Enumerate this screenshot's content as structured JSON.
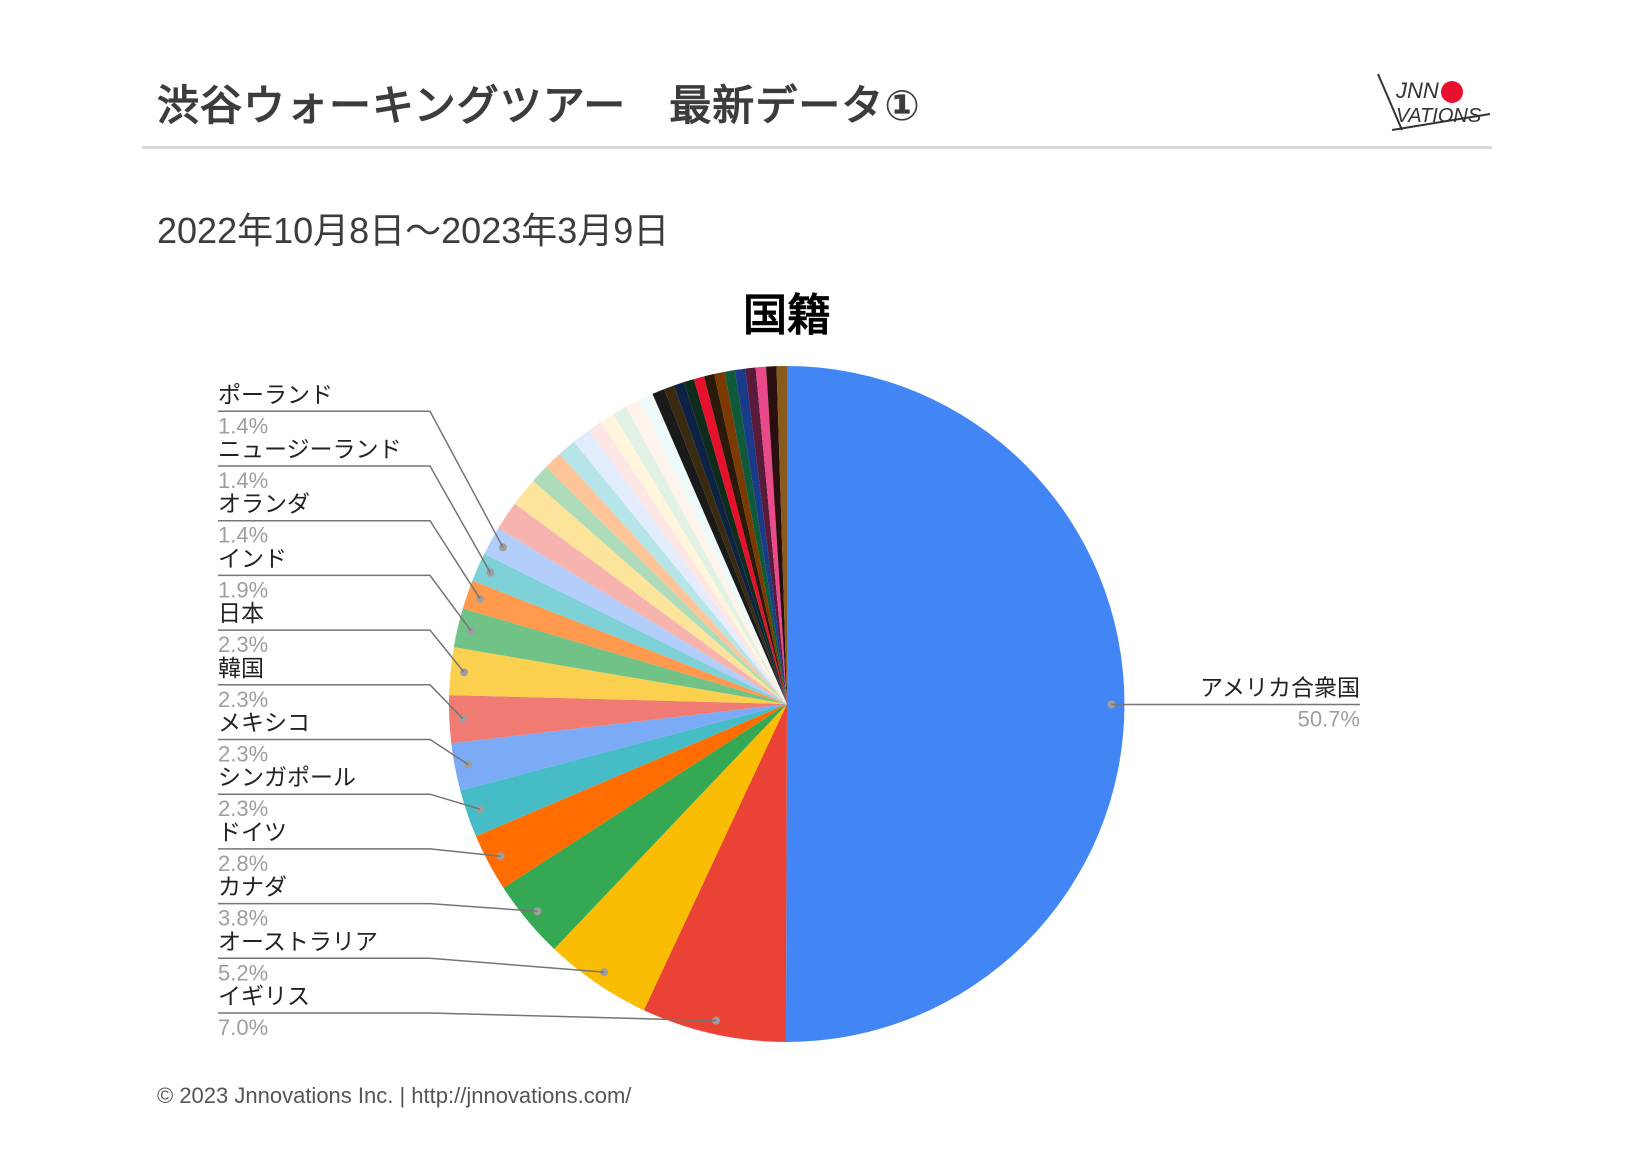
{
  "header": {
    "title": "渋谷ウォーキングツアー　最新データ①",
    "logo_text_top": "JNN",
    "logo_text_bottom": "VATIONS",
    "logo_accent": "#e8112d"
  },
  "subtitle": "2022年10月8日～2023年3月9日",
  "footer": "© 2023 Jnnovations  Inc.  |  http://jnnovations.com/",
  "chart_data": {
    "type": "pie",
    "title": "国籍",
    "start_angle_deg": 0,
    "direction": "clockwise",
    "labeled_slices": [
      {
        "label": "アメリカ合衆国",
        "value": 50.7,
        "color": "#4285f4",
        "pct_label": "50.7%"
      },
      {
        "label": "イギリス",
        "value": 7.0,
        "color": "#ea4335",
        "pct_label": "7.0%"
      },
      {
        "label": "オーストラリア",
        "value": 5.2,
        "color": "#fbbc04",
        "pct_label": "5.2%"
      },
      {
        "label": "カナダ",
        "value": 3.8,
        "color": "#34a853",
        "pct_label": "3.8%"
      },
      {
        "label": "ドイツ",
        "value": 2.8,
        "color": "#ff6d01",
        "pct_label": "2.8%"
      },
      {
        "label": "シンガポール",
        "value": 2.3,
        "color": "#46bdc6",
        "pct_label": "2.3%"
      },
      {
        "label": "メキシコ",
        "value": 2.3,
        "color": "#7baaf7",
        "pct_label": "2.3%"
      },
      {
        "label": "韓国",
        "value": 2.3,
        "color": "#f07b72",
        "pct_label": "2.3%"
      },
      {
        "label": "日本",
        "value": 2.3,
        "color": "#fcd04f",
        "pct_label": "2.3%"
      },
      {
        "label": "インド",
        "value": 1.9,
        "color": "#71c287",
        "pct_label": "1.9%"
      },
      {
        "label": "オランダ",
        "value": 1.4,
        "color": "#ff994d",
        "pct_label": "1.4%"
      },
      {
        "label": "ニュージーランド",
        "value": 1.4,
        "color": "#7ed1d7",
        "pct_label": "1.4%"
      },
      {
        "label": "ポーランド",
        "value": 1.4,
        "color": "#b3cefb",
        "pct_label": "1.4%"
      }
    ],
    "unlabeled_slices": [
      {
        "value": 1.4,
        "color": "#f7b4ae"
      },
      {
        "value": 1.4,
        "color": "#fde49b"
      },
      {
        "value": 0.9,
        "color": "#aedcba"
      },
      {
        "value": 0.9,
        "color": "#ffc599"
      },
      {
        "value": 0.9,
        "color": "#b5e5e8"
      },
      {
        "value": 0.9,
        "color": "#e3ecfd"
      },
      {
        "value": 0.7,
        "color": "#fde6e4"
      },
      {
        "value": 0.7,
        "color": "#fff6db"
      },
      {
        "value": 0.7,
        "color": "#e1f2e5"
      },
      {
        "value": 0.7,
        "color": "#fff4eb"
      },
      {
        "value": 0.7,
        "color": "#eef9fa"
      },
      {
        "value": 0.6,
        "color": "#1a1a1a"
      },
      {
        "value": 0.5,
        "color": "#3a2a10"
      },
      {
        "value": 0.5,
        "color": "#0d2345"
      },
      {
        "value": 0.5,
        "color": "#102c1a"
      },
      {
        "value": 0.5,
        "color": "#e8112d"
      },
      {
        "value": 0.5,
        "color": "#2b1a0a"
      },
      {
        "value": 0.5,
        "color": "#7a3a00"
      },
      {
        "value": 0.5,
        "color": "#0f5a3a"
      },
      {
        "value": 0.5,
        "color": "#1a3a8a"
      },
      {
        "value": 0.5,
        "color": "#5a1a3a"
      },
      {
        "value": 0.5,
        "color": "#e84a8a"
      },
      {
        "value": 0.5,
        "color": "#2a0f0f"
      },
      {
        "value": 0.5,
        "color": "#8a5a1a"
      }
    ]
  }
}
